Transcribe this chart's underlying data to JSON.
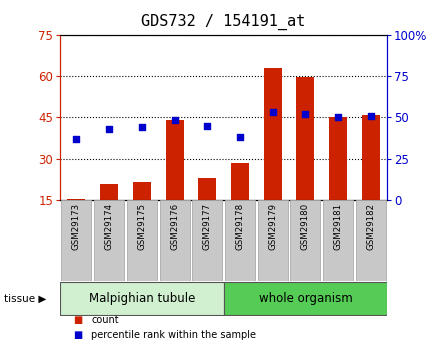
{
  "title": "GDS732 / 154191_at",
  "samples": [
    "GSM29173",
    "GSM29174",
    "GSM29175",
    "GSM29176",
    "GSM29177",
    "GSM29178",
    "GSM29179",
    "GSM29180",
    "GSM29181",
    "GSM29182"
  ],
  "counts": [
    15.5,
    21,
    21.5,
    44,
    23,
    28.5,
    63,
    59.5,
    45,
    46
  ],
  "percentiles": [
    37,
    43,
    44,
    48.5,
    44.5,
    38,
    53,
    52,
    50,
    51
  ],
  "tissue_groups": [
    {
      "label": "Malpighian tubule",
      "start": 0,
      "end": 5,
      "color": "#d0f0d0"
    },
    {
      "label": "whole organism",
      "start": 5,
      "end": 10,
      "color": "#55cc55"
    }
  ],
  "ylim_left": [
    15,
    75
  ],
  "ylim_right": [
    0,
    100
  ],
  "yticks_left": [
    15,
    30,
    45,
    60,
    75
  ],
  "yticks_right": [
    0,
    25,
    50,
    75,
    100
  ],
  "bar_color": "#cc2200",
  "dot_color": "#0000cc",
  "bar_width": 0.55,
  "bg_color": "#ffffff",
  "title_fontsize": 11,
  "left_axis_color": "#cc2200",
  "right_axis_color": "#0000cc",
  "label_color_gray": "#c8c8c8",
  "label_border_color": "#aaaaaa"
}
